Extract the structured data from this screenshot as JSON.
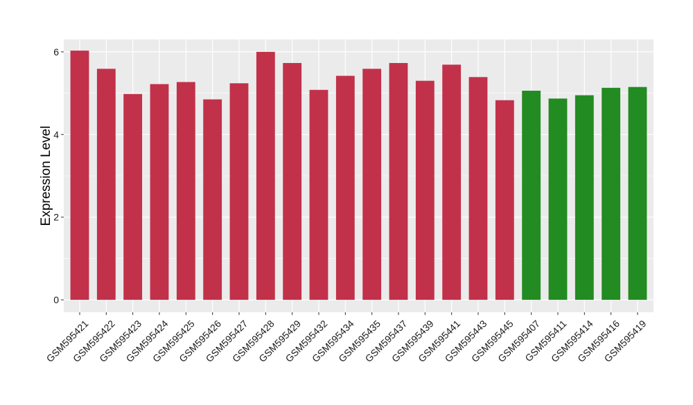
{
  "chart_data": {
    "type": "bar",
    "title": "",
    "xlabel": "",
    "ylabel": "Expression Level",
    "ylim": [
      -0.3,
      6.3
    ],
    "yticks": [
      0,
      2,
      4,
      6
    ],
    "grid": true,
    "categories": [
      "GSM595421",
      "GSM595422",
      "GSM595423",
      "GSM595424",
      "GSM595425",
      "GSM595426",
      "GSM595427",
      "GSM595428",
      "GSM595429",
      "GSM595432",
      "GSM595434",
      "GSM595435",
      "GSM595437",
      "GSM595439",
      "GSM595441",
      "GSM595443",
      "GSM595445",
      "GSM595407",
      "GSM595411",
      "GSM595414",
      "GSM595416",
      "GSM595419"
    ],
    "values": [
      6.03,
      5.59,
      4.98,
      5.22,
      5.27,
      4.85,
      5.24,
      6.0,
      5.73,
      5.08,
      5.42,
      5.59,
      5.73,
      5.3,
      5.69,
      5.39,
      4.83,
      5.06,
      4.87,
      4.95,
      5.13,
      5.15
    ],
    "colors": [
      "#c2314a",
      "#c2314a",
      "#c2314a",
      "#c2314a",
      "#c2314a",
      "#c2314a",
      "#c2314a",
      "#c2314a",
      "#c2314a",
      "#c2314a",
      "#c2314a",
      "#c2314a",
      "#c2314a",
      "#c2314a",
      "#c2314a",
      "#c2314a",
      "#c2314a",
      "#228b22",
      "#228b22",
      "#228b22",
      "#228b22",
      "#228b22"
    ],
    "panel_background": "#ebebeb",
    "grid_color": "#ffffff"
  }
}
